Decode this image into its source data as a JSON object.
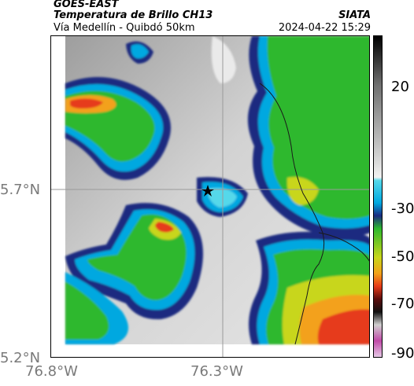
{
  "header": {
    "satellite": "GOES-EAST",
    "product": "Temperatura de Brillo CH13",
    "agency": "SIATA",
    "region": "Vía Medellín - Quibdó 50km",
    "datetime": "2024-04-22 15:29"
  },
  "axes": {
    "lat_ticks": [
      "5.7°N",
      "5.2°N"
    ],
    "lon_ticks": [
      "76.8°W",
      "76.3°W"
    ]
  },
  "colorbar": {
    "ticks": [
      "20",
      "-30",
      "-50",
      "-70",
      "-90"
    ]
  },
  "map": {
    "marker_icon": "star-icon"
  }
}
